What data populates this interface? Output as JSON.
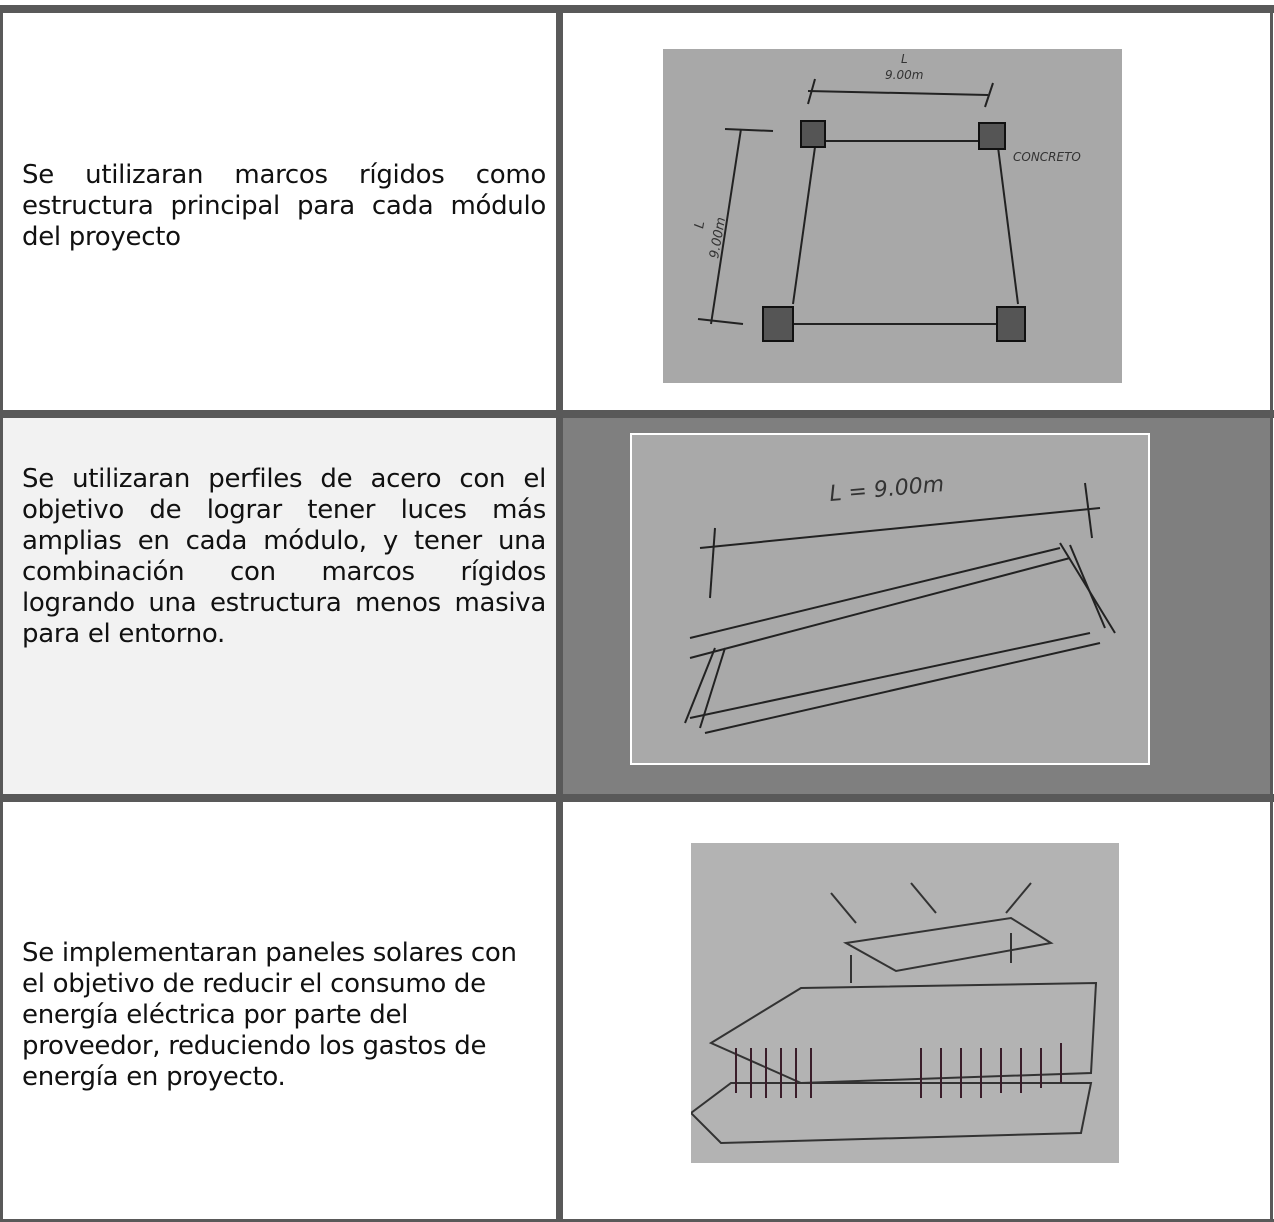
{
  "table": {
    "rows": [
      {
        "text": "Se utilizaran marcos rígidos como estructura principal para cada módulo del proyecto",
        "sketch_labels": [
          "L",
          "9.00m",
          "CONCRETO",
          "L",
          "9.00m"
        ]
      },
      {
        "text": "Se utilizaran perfiles de acero con el objetivo de lograr tener luces más amplias en cada módulo, y tener una combinación con marcos rígidos logrando una estructura menos masiva para el entorno.",
        "sketch_labels": [
          "L = 9.00m"
        ]
      },
      {
        "text": "Se implementaran paneles solares con el objetivo de reducir el consumo de energía eléctrica por parte del proveedor, reduciendo los gastos de energía en proyecto.",
        "sketch_labels": []
      }
    ]
  }
}
